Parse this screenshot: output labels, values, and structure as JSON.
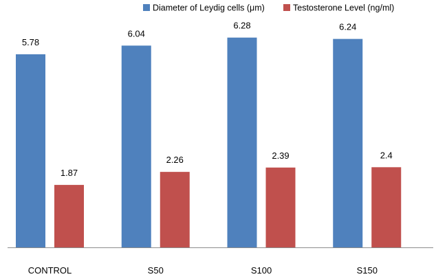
{
  "chart_data": {
    "type": "bar",
    "categories": [
      "CONTROL",
      "S50",
      "S100",
      "S150"
    ],
    "series": [
      {
        "name": "Diameter of Leydig cells (μm)",
        "values": [
          5.78,
          6.04,
          6.28,
          6.24
        ],
        "color": "#4f81bd"
      },
      {
        "name": "Testosterone Level (ng/ml)",
        "values": [
          1.87,
          2.26,
          2.39,
          2.4
        ],
        "color": "#c0504d"
      }
    ],
    "data_labels": [
      [
        "5.78",
        "6.04",
        "6.28",
        "6.24"
      ],
      [
        "1.87",
        "2.26",
        "2.39",
        "2.4"
      ]
    ],
    "ylim": [
      0,
      6.5
    ],
    "y_axis_visible": false,
    "grid": false,
    "legend_position": "top"
  }
}
